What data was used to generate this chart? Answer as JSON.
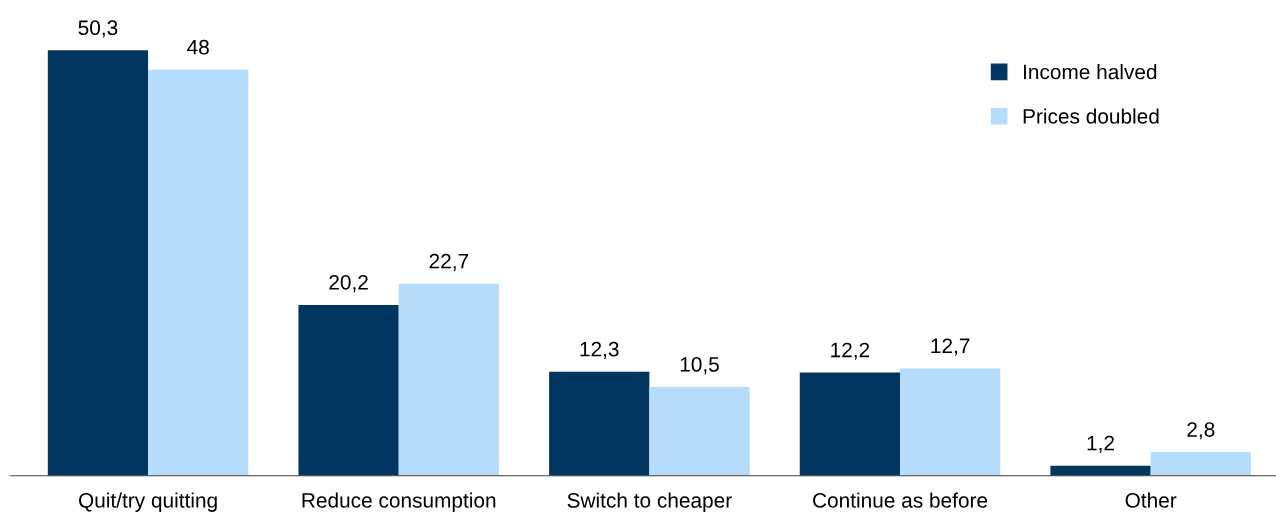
{
  "chart_data": {
    "type": "bar",
    "categories": [
      "Quit/try quitting",
      "Reduce consumption",
      "Switch to cheaper",
      "Continue as before",
      "Other"
    ],
    "series": [
      {
        "name": "Income halved",
        "color": "#003660",
        "values": [
          50.3,
          20.2,
          12.3,
          12.2,
          1.2
        ],
        "value_labels": [
          "50,3",
          "20,2",
          "12,3",
          "12,2",
          "1,2"
        ]
      },
      {
        "name": "Prices doubled",
        "color": "#b6dcfc",
        "values": [
          48,
          22.7,
          10.5,
          12.7,
          2.8
        ],
        "value_labels": [
          "48",
          "22,7",
          "10,5",
          "12,7",
          "2,8"
        ]
      }
    ],
    "legend": "top right",
    "grid": false,
    "tick_labels": "x"
  }
}
